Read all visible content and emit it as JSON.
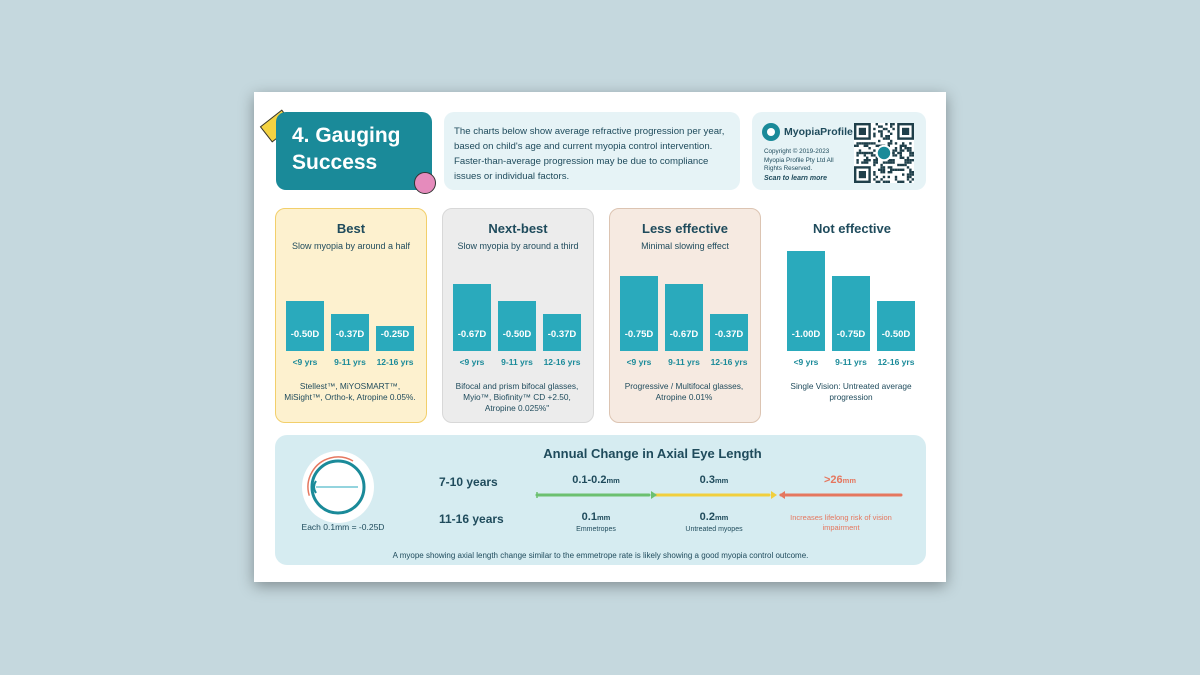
{
  "title": {
    "line1": "4. Gauging",
    "line2": "Success"
  },
  "intro": "The charts below show average refractive progression per year, based on child's age and current myopia control intervention. Faster-than-average progression may be due to compliance issues or individual factors.",
  "brand": {
    "name": "MyopiaProfile",
    "copyright": "Copyright © 2019-2023 Myopia Profile Pty Ltd All Rights Reserved.",
    "scan": "Scan to learn more"
  },
  "colors": {
    "teal": "#1a8a99",
    "bar": "#2aaabc",
    "yellow": "#f4d342",
    "pink": "#e58bbc",
    "green": "#6cc070",
    "amber": "#f1cf3d",
    "red": "#e5775f"
  },
  "panels": [
    {
      "heading": "Best",
      "sub": "Slow myopia by around a half",
      "desc": "Stellest™, MiYOSMART™, MiSight™, Ortho-k, Atropine 0.05%.",
      "bars": [
        {
          "value": 0.5,
          "label": "-0.50D",
          "age": "<9 yrs"
        },
        {
          "value": 0.37,
          "label": "-0.37D",
          "age": "9-11 yrs"
        },
        {
          "value": 0.25,
          "label": "-0.25D",
          "age": "12-16 yrs"
        }
      ]
    },
    {
      "heading": "Next-best",
      "sub": "Slow myopia by around a third",
      "desc": "Bifocal and prism bifocal glasses, Myio™, Biofinity™ CD +2.50, Atropine 0.025%\"",
      "bars": [
        {
          "value": 0.67,
          "label": "-0.67D",
          "age": "<9 yrs"
        },
        {
          "value": 0.5,
          "label": "-0.50D",
          "age": "9-11 yrs"
        },
        {
          "value": 0.37,
          "label": "-0.37D",
          "age": "12-16 yrs"
        }
      ]
    },
    {
      "heading": "Less effective",
      "sub": "Minimal slowing effect",
      "desc": "Progressive / Multifocal glasses, Atropine 0.01%",
      "bars": [
        {
          "value": 0.75,
          "label": "-0.75D",
          "age": "<9 yrs"
        },
        {
          "value": 0.67,
          "label": "-0.67D",
          "age": "9-11 yrs"
        },
        {
          "value": 0.37,
          "label": "-0.37D",
          "age": "12-16 yrs"
        }
      ]
    },
    {
      "heading": "Not effective",
      "sub": "",
      "desc": "Single Vision: Untreated average progression",
      "bars": [
        {
          "value": 1.0,
          "label": "-1.00D",
          "age": "<9 yrs"
        },
        {
          "value": 0.75,
          "label": "-0.75D",
          "age": "9-11 yrs"
        },
        {
          "value": 0.5,
          "label": "-0.50D",
          "age": "12-16 yrs"
        }
      ]
    }
  ],
  "axial": {
    "title": "Annual Change in Axial Eye Length",
    "eye_caption": "Each 0.1mm = -0.25D",
    "ages": [
      "7-10 years",
      "11-16 years"
    ],
    "unit": "mm",
    "row1": [
      "0.1-0.2",
      "0.3",
      ">26"
    ],
    "row2": [
      "0.1",
      "0.2"
    ],
    "row2_sub": [
      "Emmetropes",
      "Untreated myopes"
    ],
    "risk": "Increases lifelong risk of vision impairment",
    "footer": "A myope showing axial length change similar to the emmetrope rate is likely showing a good myopia control outcome."
  }
}
